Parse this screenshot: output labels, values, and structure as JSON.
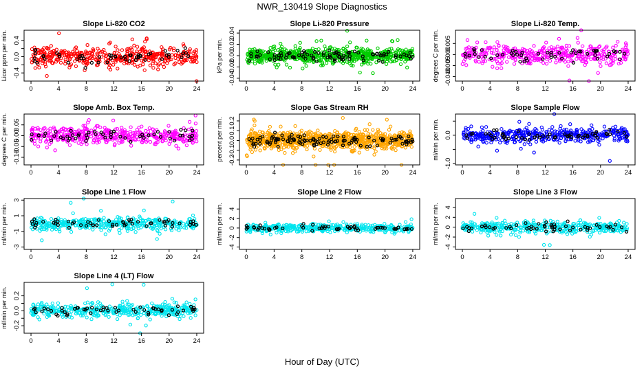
{
  "figure": {
    "title": "NWR_130419  Slope Diagnostics",
    "xlabel": "Hour of Day (UTC)"
  },
  "chart_data": [
    {
      "type": "scatter",
      "title": "Slope Li-820 CO2",
      "ylabel": "Licor ppm per min.",
      "xlim": [
        -1,
        25
      ],
      "ylim": [
        -0.6,
        0.65
      ],
      "xticks": [
        0,
        4,
        8,
        12,
        16,
        20,
        24
      ],
      "yticks": [
        -0.4,
        -0.2,
        0.0,
        0.2,
        0.4
      ],
      "ytick_labels": [
        "-0.4",
        "",
        "0.0",
        "",
        "0.4"
      ],
      "color": "#ff0000",
      "spread": 0.22,
      "density": 420
    },
    {
      "type": "scatter",
      "title": "Slope Li-820 Pressure",
      "ylabel": "kPa per min.",
      "xlim": [
        -1,
        25
      ],
      "ylim": [
        -0.045,
        0.045
      ],
      "xticks": [
        0,
        4,
        8,
        12,
        16,
        20,
        24
      ],
      "yticks": [
        -0.04,
        -0.02,
        0.0,
        0.02,
        0.04
      ],
      "ytick_labels": [
        "-0.04",
        "-0.02",
        "0.00",
        "0.02",
        "0.04"
      ],
      "color": "#00cc00",
      "spread": 0.011,
      "density": 700
    },
    {
      "type": "scatter",
      "title": "Slope Li-820 Temp.",
      "ylabel": "degrees C per min.",
      "xlim": [
        -1,
        25
      ],
      "ylim": [
        -0.012,
        0.011
      ],
      "xticks": [
        0,
        4,
        8,
        12,
        16,
        20,
        24
      ],
      "yticks": [
        -0.01,
        -0.005,
        0.0,
        0.005
      ],
      "ytick_labels": [
        "-0.010",
        "-0.005",
        "0.000",
        "0.005"
      ],
      "color": "#ff00ff",
      "spread": 0.004,
      "density": 400
    },
    {
      "type": "scatter",
      "title": "Slope Amb. Box Temp.",
      "ylabel": "degrees C per min.",
      "xlim": [
        -1,
        25
      ],
      "ylim": [
        -0.135,
        0.1
      ],
      "xticks": [
        0,
        4,
        8,
        12,
        16,
        20,
        24
      ],
      "yticks": [
        -0.1,
        -0.05,
        0.0,
        0.05
      ],
      "ytick_labels": [
        "-0.10",
        "-0.05",
        "0.00",
        "0.05"
      ],
      "color": "#ff00ff",
      "spread": 0.035,
      "density": 420
    },
    {
      "type": "scatter",
      "title": "Slope Gas Stream RH",
      "ylabel": "percent per min.",
      "xlim": [
        -1,
        25
      ],
      "ylim": [
        -0.25,
        0.27
      ],
      "xticks": [
        0,
        4,
        8,
        12,
        16,
        20,
        24
      ],
      "yticks": [
        -0.2,
        -0.1,
        0.0,
        0.1,
        0.2
      ],
      "ytick_labels": [
        "-0.2",
        "-0.1",
        "0.0",
        "0.1",
        "0.2"
      ],
      "color": "#ffa500",
      "spread": 0.075,
      "density": 900
    },
    {
      "type": "scatter",
      "title": "Slope Sample Flow",
      "ylabel": "ml/min per min.",
      "xlim": [
        -1,
        25
      ],
      "ylim": [
        -1.05,
        0.75
      ],
      "xticks": [
        0,
        4,
        8,
        12,
        16,
        20,
        24
      ],
      "yticks": [
        -1.0,
        -0.5,
        0.0,
        0.5
      ],
      "ytick_labels": [
        "-1.0",
        "",
        "0.0",
        ""
      ],
      "color": "#0000ff",
      "spread": 0.22,
      "density": 420
    },
    {
      "type": "scatter",
      "title": "Slope Line 1 Flow",
      "ylabel": "ml/min per min.",
      "xlim": [
        -1,
        25
      ],
      "ylim": [
        -3.3,
        3.2
      ],
      "xticks": [
        0,
        4,
        8,
        12,
        16,
        20,
        24
      ],
      "yticks": [
        -3,
        -1,
        1,
        3
      ],
      "ytick_labels": [
        "-3",
        "-1",
        "1",
        "3"
      ],
      "color": "#00e5ee",
      "spread": 0.7,
      "density": 420
    },
    {
      "type": "scatter",
      "title": "Slope Line 2 Flow",
      "ylabel": "ml/min per min.",
      "xlim": [
        -1,
        25
      ],
      "ylim": [
        -4.5,
        6.2
      ],
      "xticks": [
        0,
        4,
        8,
        12,
        16,
        20,
        24
      ],
      "yticks": [
        -4,
        -2,
        0,
        2,
        4
      ],
      "ytick_labels": [
        "-4",
        "-2",
        "0",
        "2",
        "4"
      ],
      "color": "#00e5ee",
      "spread": 0.7,
      "density": 420
    },
    {
      "type": "scatter",
      "title": "Slope Line 3 Flow",
      "ylabel": "ml/min per min.",
      "xlim": [
        -1,
        25
      ],
      "ylim": [
        -4.5,
        5.8
      ],
      "xticks": [
        0,
        4,
        8,
        12,
        16,
        20,
        24
      ],
      "yticks": [
        -4,
        -2,
        0,
        2,
        4
      ],
      "ytick_labels": [
        "-4",
        "-2",
        "0",
        "2",
        "4"
      ],
      "color": "#00e5ee",
      "spread": 1.0,
      "density": 420
    },
    {
      "type": "scatter",
      "title": "Slope Line 4 (LT) Flow",
      "ylabel": "ml/min per min.",
      "xlim": [
        -1,
        25
      ],
      "ylim": [
        -0.3,
        0.38
      ],
      "xticks": [
        0,
        4,
        8,
        12,
        16,
        20,
        24
      ],
      "yticks": [
        -0.2,
        -0.1,
        0.0,
        0.1,
        0.2
      ],
      "ytick_labels": [
        "-0.2",
        "",
        "0.0",
        "",
        "0.2"
      ],
      "color": "#00e5ee",
      "spread": 0.08,
      "density": 420
    }
  ]
}
